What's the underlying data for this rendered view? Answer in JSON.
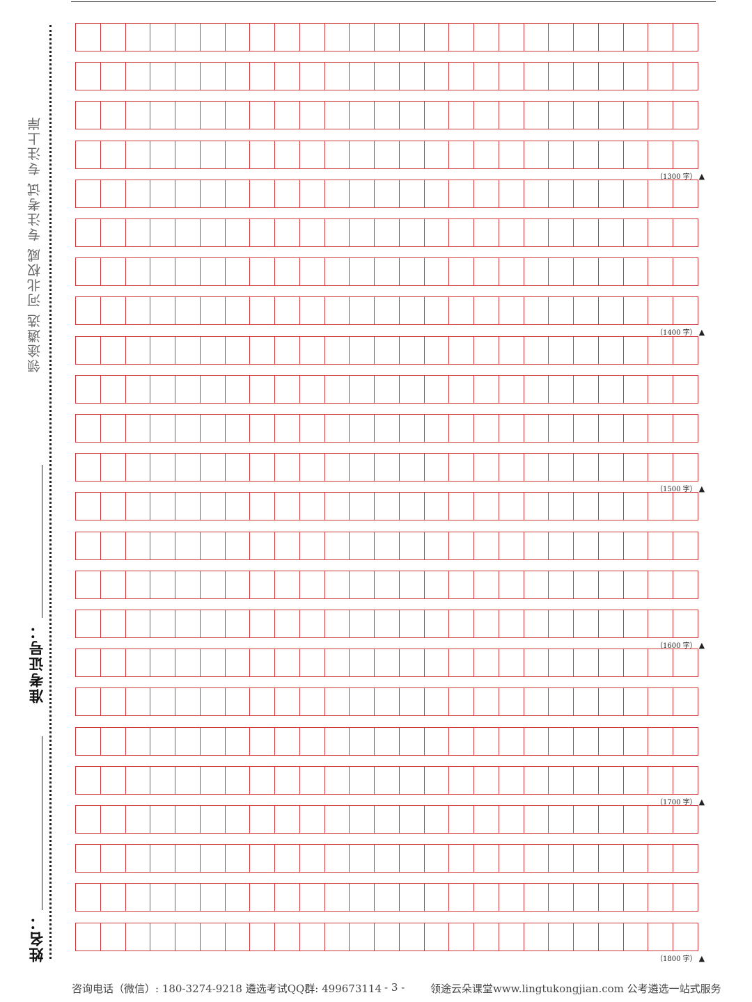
{
  "sidebar": {
    "slogan": "领途遴选  河北权威  专注考试  专注上岸",
    "exam_id_label": "准考证号：",
    "name_label": "姓名："
  },
  "grid": {
    "rows": 24,
    "columns": 25,
    "markers": [
      "（1300 字）",
      "（1400 字）",
      "（1500 字）",
      "（1600 字）",
      "（1700 字）",
      "（1800 字）"
    ],
    "marker_symbol": "▲"
  },
  "footer": {
    "contact": "咨询电话（微信）: 180-3274-9218  遴选考试QQ群: 499673114",
    "page_number": "- 3 -",
    "website": "领途云朵课堂www.lingtukongjian.com 公考遴选一站式服务"
  },
  "colors": {
    "grid_line": "#d4373b",
    "text": "#333333"
  }
}
